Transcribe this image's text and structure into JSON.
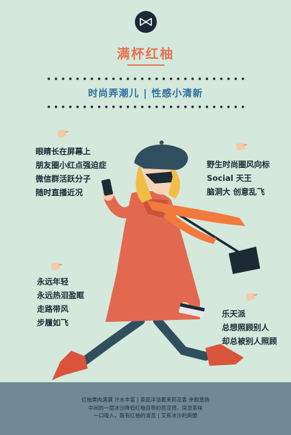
{
  "title": "满杯红柚",
  "subtitle": "时尚弄潮儿 | 性感小清新",
  "left_top": [
    "眼睛长在屏幕上",
    "朋友圈小红点强迫症",
    "微信群活跃分子",
    "随时直播近况"
  ],
  "right_top": [
    "野生时尚圈风向标",
    "Social 天王",
    "脑洞大 创意乱飞"
  ],
  "left_bottom": [
    "永远年轻",
    "永远热泪盈眶",
    "走路带风",
    "步履如飞"
  ],
  "right_bottom": [
    "乐天派",
    "总想照顾别人",
    "却总被别人照顾"
  ],
  "footer": [
    "红柚果肉满满 汁水丰富 | 茶底洋溢着茉莉花香 余韵悠扬",
    "中间的一层冰沙降低红柚自带的苦涩感，突显茶味",
    "一口吸入，既有红柚的清苦 | 又有冰沙的爽脆"
  ],
  "icons": {
    "logo": "bow-tie-logo-icon",
    "note": "sticky-note-icon"
  },
  "colors": {
    "background": "#d5e8dc",
    "accent": "#e4744f",
    "subtitle": "#2e6f9e",
    "text": "#1b2a35"
  }
}
